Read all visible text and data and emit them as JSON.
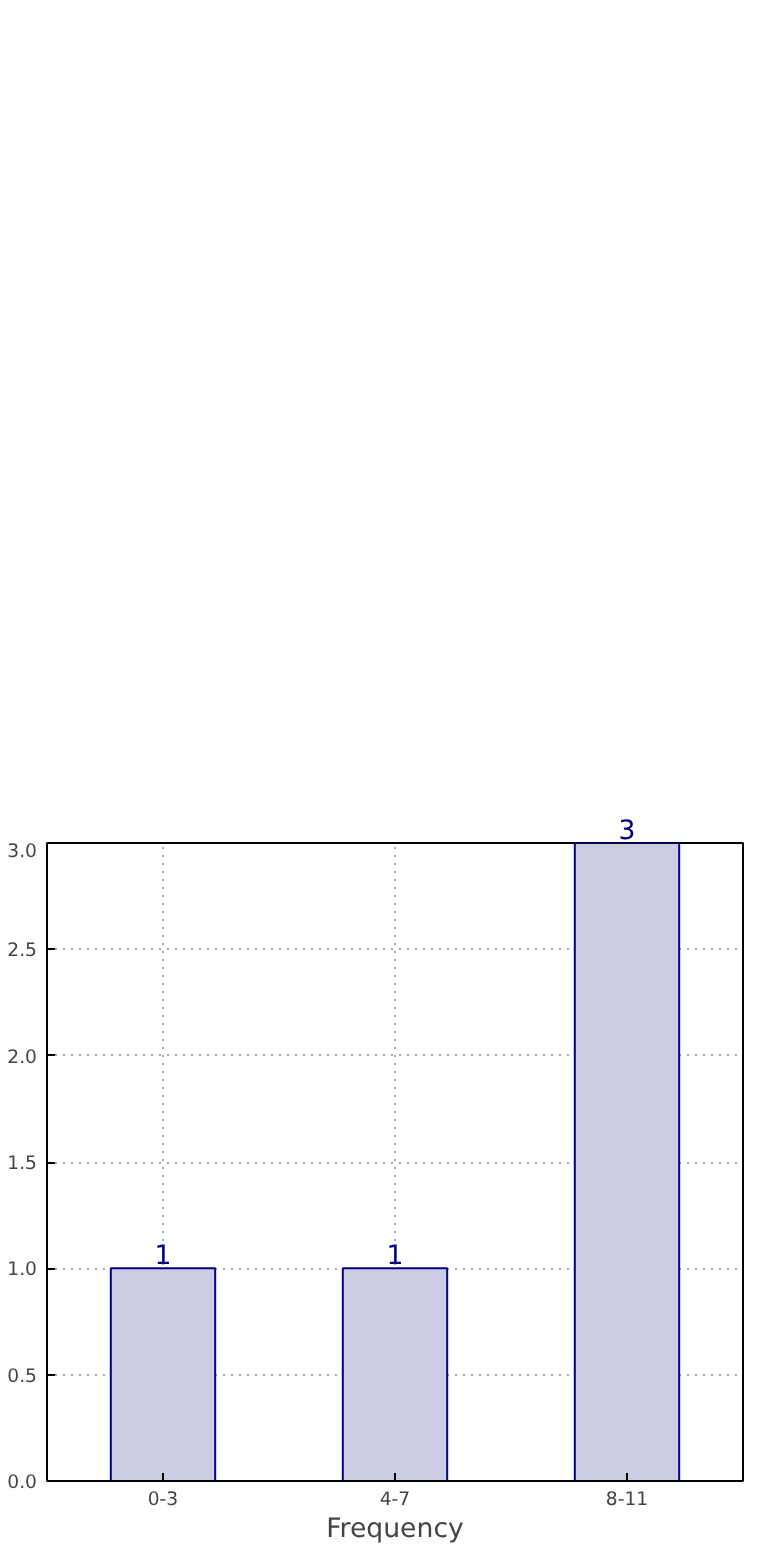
{
  "chart_data": {
    "type": "bar",
    "xlabel": "Frequency",
    "categories": [
      "0-3",
      "4-7",
      "8-11"
    ],
    "values": [
      1,
      1,
      3
    ],
    "color": "#ccccE5",
    "ylim": [
      0,
      3
    ],
    "yticks": [
      {
        "value": 0,
        "label": "0.0"
      },
      {
        "value": 0.5,
        "label": "0.5"
      },
      {
        "value": 1,
        "label": "1.0"
      },
      {
        "value": 1.5,
        "label": "1.5"
      },
      {
        "value": 2,
        "label": "2.0"
      },
      {
        "value": 2.5,
        "label": "2.5"
      },
      {
        "value": 3,
        "label": "3.0"
      }
    ],
    "grid": true,
    "data_labels": true
  }
}
